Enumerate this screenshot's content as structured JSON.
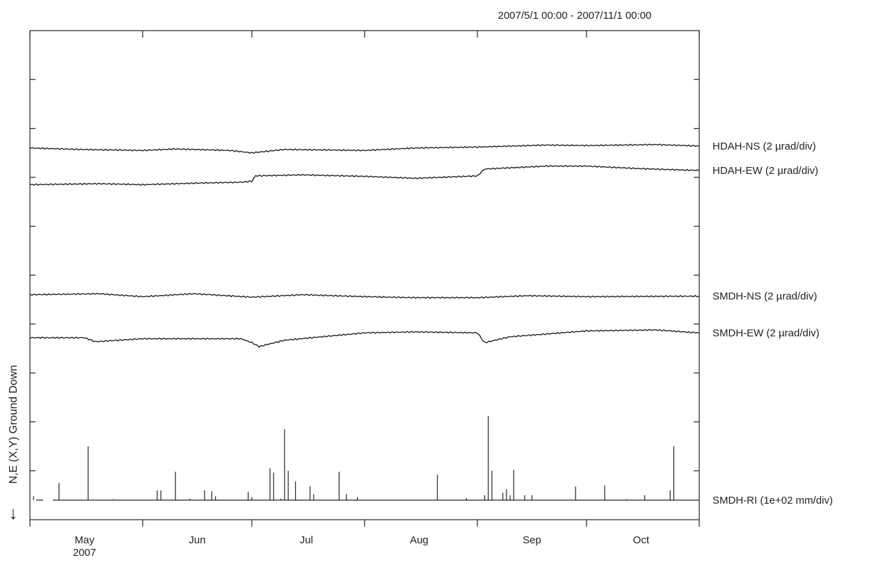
{
  "chart_data": {
    "type": "line",
    "title": "2007/5/1 00:00 - 2007/11/1 00:00",
    "ylabel": "N,E (X,Y) Ground Down",
    "y_arrow": "↓",
    "x_axis": {
      "range": [
        "2007-05-01",
        "2007-11-01"
      ],
      "month_ticks": [
        "2007-05-01",
        "2007-06-01",
        "2007-07-01",
        "2007-08-01",
        "2007-09-01",
        "2007-10-01",
        "2007-11-01"
      ],
      "month_labels": [
        {
          "date": "2007-05-16",
          "label": "May"
        },
        {
          "date": "2007-06-16",
          "label": "Jun"
        },
        {
          "date": "2007-07-16",
          "label": "Jul"
        },
        {
          "date": "2007-08-16",
          "label": "Aug"
        },
        {
          "date": "2007-09-16",
          "label": "Sep"
        },
        {
          "date": "2007-10-16",
          "label": "Oct"
        }
      ],
      "year_label": "2007"
    },
    "y_axis": {
      "divisions": 10,
      "ticks_labeled": false
    },
    "grid": false,
    "colors": {
      "line": "#222222",
      "axis": "#222222",
      "background": "#ffffff"
    },
    "series": [
      {
        "name": "HDAH-NS (2 µrad/div)",
        "baseline_div": 7.6,
        "points": [
          [
            "2007-05-01",
            0.0
          ],
          [
            "2007-05-15",
            -0.03
          ],
          [
            "2007-06-01",
            -0.05
          ],
          [
            "2007-06-10",
            -0.02
          ],
          [
            "2007-06-25",
            -0.05
          ],
          [
            "2007-07-01",
            -0.1
          ],
          [
            "2007-07-10",
            -0.03
          ],
          [
            "2007-08-01",
            -0.05
          ],
          [
            "2007-08-15",
            0.0
          ],
          [
            "2007-09-01",
            0.02
          ],
          [
            "2007-09-20",
            0.06
          ],
          [
            "2007-10-01",
            0.05
          ],
          [
            "2007-10-20",
            0.07
          ],
          [
            "2007-11-01",
            0.04
          ]
        ]
      },
      {
        "name": "HDAH-EW (2 µrad/div)",
        "baseline_div": 6.85,
        "points": [
          [
            "2007-05-01",
            0.0
          ],
          [
            "2007-05-20",
            0.02
          ],
          [
            "2007-06-01",
            0.0
          ],
          [
            "2007-06-15",
            0.03
          ],
          [
            "2007-06-28",
            0.05
          ],
          [
            "2007-07-01",
            0.07
          ],
          [
            "2007-07-02",
            0.18
          ],
          [
            "2007-07-15",
            0.2
          ],
          [
            "2007-08-01",
            0.17
          ],
          [
            "2007-08-15",
            0.13
          ],
          [
            "2007-09-01",
            0.18
          ],
          [
            "2007-09-03",
            0.32
          ],
          [
            "2007-09-20",
            0.38
          ],
          [
            "2007-10-01",
            0.38
          ],
          [
            "2007-10-15",
            0.33
          ],
          [
            "2007-11-01",
            0.29
          ]
        ]
      },
      {
        "name": "SMDH-NS (2 µrad/div)",
        "baseline_div": 4.6,
        "points": [
          [
            "2007-05-01",
            0.0
          ],
          [
            "2007-05-20",
            0.02
          ],
          [
            "2007-06-01",
            -0.04
          ],
          [
            "2007-06-15",
            0.02
          ],
          [
            "2007-07-01",
            -0.05
          ],
          [
            "2007-07-15",
            0.0
          ],
          [
            "2007-08-01",
            -0.04
          ],
          [
            "2007-08-15",
            -0.06
          ],
          [
            "2007-09-01",
            -0.06
          ],
          [
            "2007-09-15",
            -0.02
          ],
          [
            "2007-10-01",
            -0.04
          ],
          [
            "2007-11-01",
            -0.03
          ]
        ]
      },
      {
        "name": "SMDH-EW (2 µrad/div)",
        "baseline_div": 3.72,
        "points": [
          [
            "2007-05-01",
            0.0
          ],
          [
            "2007-05-16",
            0.0
          ],
          [
            "2007-05-19",
            -0.08
          ],
          [
            "2007-06-01",
            -0.02
          ],
          [
            "2007-06-28",
            -0.02
          ],
          [
            "2007-07-01",
            -0.1
          ],
          [
            "2007-07-03",
            -0.18
          ],
          [
            "2007-07-10",
            -0.05
          ],
          [
            "2007-08-01",
            0.1
          ],
          [
            "2007-08-15",
            0.12
          ],
          [
            "2007-09-01",
            0.1
          ],
          [
            "2007-09-03",
            -0.1
          ],
          [
            "2007-09-10",
            0.02
          ],
          [
            "2007-10-01",
            0.14
          ],
          [
            "2007-10-20",
            0.16
          ],
          [
            "2007-11-01",
            0.1
          ]
        ]
      }
    ],
    "precip": {
      "name": "SMDH-RI (1e+02 mm/div)",
      "baseline_div": 0.4,
      "bars": [
        [
          "2007-05-02",
          0.08
        ],
        [
          "2007-05-09",
          0.35
        ],
        [
          "2007-05-17",
          1.1
        ],
        [
          "2007-05-24",
          0.02
        ],
        [
          "2007-06-05",
          0.2
        ],
        [
          "2007-06-06",
          0.2
        ],
        [
          "2007-06-10",
          0.58
        ],
        [
          "2007-06-14",
          0.03
        ],
        [
          "2007-06-18",
          0.2
        ],
        [
          "2007-06-20",
          0.18
        ],
        [
          "2007-06-21",
          0.08
        ],
        [
          "2007-06-30",
          0.17
        ],
        [
          "2007-07-01",
          0.06
        ],
        [
          "2007-07-06",
          0.65
        ],
        [
          "2007-07-07",
          0.56
        ],
        [
          "2007-07-09",
          0.03
        ],
        [
          "2007-07-10",
          1.45
        ],
        [
          "2007-07-11",
          0.6
        ],
        [
          "2007-07-13",
          0.38
        ],
        [
          "2007-07-17",
          0.28
        ],
        [
          "2007-07-18",
          0.12
        ],
        [
          "2007-07-25",
          0.58
        ],
        [
          "2007-07-27",
          0.12
        ],
        [
          "2007-07-30",
          0.06
        ],
        [
          "2007-08-21",
          0.52
        ],
        [
          "2007-08-29",
          0.04
        ],
        [
          "2007-09-03",
          0.1
        ],
        [
          "2007-09-04",
          1.72
        ],
        [
          "2007-09-05",
          0.6
        ],
        [
          "2007-09-08",
          0.15
        ],
        [
          "2007-09-09",
          0.22
        ],
        [
          "2007-09-10",
          0.1
        ],
        [
          "2007-09-11",
          0.62
        ],
        [
          "2007-09-14",
          0.1
        ],
        [
          "2007-09-16",
          0.1
        ],
        [
          "2007-09-28",
          0.28
        ],
        [
          "2007-10-06",
          0.3
        ],
        [
          "2007-10-12",
          0.02
        ],
        [
          "2007-10-17",
          0.1
        ],
        [
          "2007-10-24",
          0.2
        ],
        [
          "2007-10-25",
          1.1
        ]
      ]
    }
  }
}
